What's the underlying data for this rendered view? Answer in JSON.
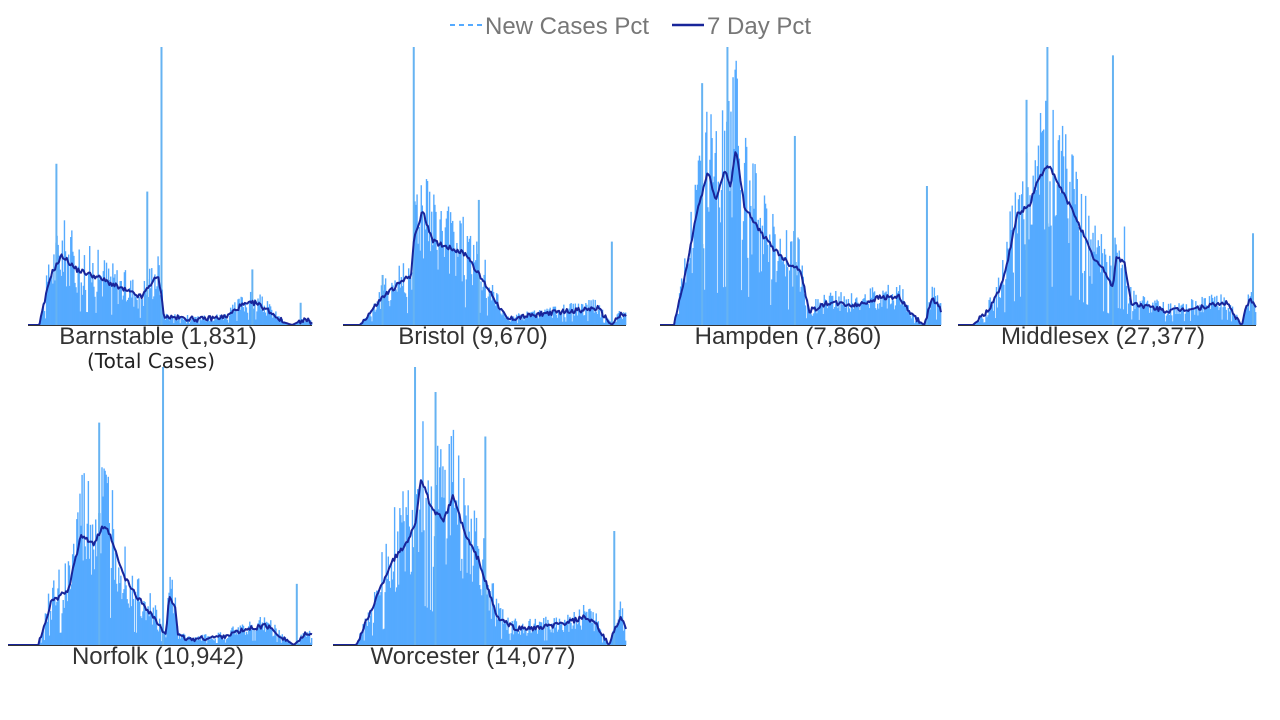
{
  "colors": {
    "bar": "#55aaff",
    "spike": "#66b3f2",
    "line": "#18259a",
    "axis": "#333333",
    "legend_text": "#777777",
    "label_text": "#333333"
  },
  "legend": {
    "dashed_label": "New Cases Pct",
    "solid_label": "7 Day Pct"
  },
  "note": "(Total Cases)",
  "chart_data": [
    {
      "type": "bar",
      "title": "Barnstable (1,831)",
      "series": [
        {
          "name": "New Cases Pct"
        },
        {
          "name": "7 Day Pct"
        }
      ],
      "profile": [
        [
          0.0,
          0.0
        ],
        [
          0.04,
          0.0
        ],
        [
          0.08,
          0.18
        ],
        [
          0.12,
          0.25
        ],
        [
          0.17,
          0.2
        ],
        [
          0.25,
          0.17
        ],
        [
          0.33,
          0.13
        ],
        [
          0.4,
          0.1
        ],
        [
          0.44,
          0.16
        ],
        [
          0.46,
          0.17
        ],
        [
          0.48,
          0.03
        ],
        [
          0.6,
          0.02
        ],
        [
          0.7,
          0.03
        ],
        [
          0.75,
          0.07
        ],
        [
          0.8,
          0.08
        ],
        [
          0.85,
          0.05
        ],
        [
          0.9,
          0.01
        ],
        [
          0.93,
          0.0
        ],
        [
          0.97,
          0.02
        ],
        [
          1.0,
          0.01
        ]
      ],
      "spikes": [
        [
          0.1,
          0.58
        ],
        [
          0.42,
          0.48
        ],
        [
          0.47,
          1.0
        ],
        [
          0.79,
          0.2
        ],
        [
          0.96,
          0.08
        ]
      ]
    },
    {
      "type": "bar",
      "title": "Bristol (9,670)",
      "series": [
        {
          "name": "New Cases Pct"
        },
        {
          "name": "7 Day Pct"
        }
      ],
      "profile": [
        [
          0.0,
          0.0
        ],
        [
          0.06,
          0.0
        ],
        [
          0.14,
          0.1
        ],
        [
          0.2,
          0.15
        ],
        [
          0.24,
          0.18
        ],
        [
          0.25,
          0.3
        ],
        [
          0.28,
          0.41
        ],
        [
          0.32,
          0.3
        ],
        [
          0.4,
          0.27
        ],
        [
          0.44,
          0.25
        ],
        [
          0.48,
          0.18
        ],
        [
          0.52,
          0.12
        ],
        [
          0.58,
          0.02
        ],
        [
          0.7,
          0.04
        ],
        [
          0.8,
          0.05
        ],
        [
          0.9,
          0.06
        ],
        [
          0.95,
          0.0
        ],
        [
          0.98,
          0.04
        ],
        [
          1.0,
          0.03
        ]
      ],
      "spikes": [
        [
          0.14,
          0.18
        ],
        [
          0.25,
          1.0
        ],
        [
          0.48,
          0.45
        ],
        [
          0.95,
          0.3
        ]
      ]
    },
    {
      "type": "bar",
      "title": "Hampden (7,860)",
      "series": [
        {
          "name": "New Cases Pct"
        },
        {
          "name": "7 Day Pct"
        }
      ],
      "profile": [
        [
          0.0,
          0.0
        ],
        [
          0.05,
          0.0
        ],
        [
          0.09,
          0.18
        ],
        [
          0.13,
          0.4
        ],
        [
          0.17,
          0.55
        ],
        [
          0.2,
          0.45
        ],
        [
          0.23,
          0.56
        ],
        [
          0.25,
          0.5
        ],
        [
          0.27,
          0.63
        ],
        [
          0.3,
          0.43
        ],
        [
          0.36,
          0.33
        ],
        [
          0.4,
          0.28
        ],
        [
          0.46,
          0.22
        ],
        [
          0.5,
          0.2
        ],
        [
          0.53,
          0.05
        ],
        [
          0.6,
          0.08
        ],
        [
          0.7,
          0.07
        ],
        [
          0.78,
          0.1
        ],
        [
          0.85,
          0.1
        ],
        [
          0.9,
          0.03
        ],
        [
          0.94,
          0.0
        ],
        [
          0.97,
          0.1
        ],
        [
          1.0,
          0.05
        ]
      ],
      "spikes": [
        [
          0.15,
          0.87
        ],
        [
          0.24,
          1.0
        ],
        [
          0.48,
          0.68
        ],
        [
          0.95,
          0.5
        ]
      ]
    },
    {
      "type": "bar",
      "title": "Middlesex (27,377)",
      "series": [
        {
          "name": "New Cases Pct"
        },
        {
          "name": "7 Day Pct"
        }
      ],
      "profile": [
        [
          0.0,
          0.0
        ],
        [
          0.05,
          0.0
        ],
        [
          0.1,
          0.05
        ],
        [
          0.15,
          0.15
        ],
        [
          0.2,
          0.4
        ],
        [
          0.24,
          0.43
        ],
        [
          0.26,
          0.5
        ],
        [
          0.3,
          0.58
        ],
        [
          0.34,
          0.5
        ],
        [
          0.4,
          0.38
        ],
        [
          0.45,
          0.25
        ],
        [
          0.5,
          0.18
        ],
        [
          0.52,
          0.13
        ],
        [
          0.53,
          0.25
        ],
        [
          0.56,
          0.22
        ],
        [
          0.58,
          0.08
        ],
        [
          0.7,
          0.05
        ],
        [
          0.8,
          0.06
        ],
        [
          0.9,
          0.08
        ],
        [
          0.95,
          0.0
        ],
        [
          0.98,
          0.1
        ],
        [
          1.0,
          0.06
        ]
      ],
      "spikes": [
        [
          0.23,
          0.81
        ],
        [
          0.3,
          1.0
        ],
        [
          0.52,
          0.97
        ],
        [
          0.99,
          0.33
        ]
      ]
    },
    {
      "type": "bar",
      "title": "Norfolk (10,942)",
      "series": [
        {
          "name": "New Cases Pct"
        },
        {
          "name": "7 Day Pct"
        }
      ],
      "profile": [
        [
          0.0,
          0.0
        ],
        [
          0.1,
          0.0
        ],
        [
          0.14,
          0.15
        ],
        [
          0.2,
          0.2
        ],
        [
          0.24,
          0.4
        ],
        [
          0.28,
          0.36
        ],
        [
          0.31,
          0.42
        ],
        [
          0.33,
          0.41
        ],
        [
          0.38,
          0.25
        ],
        [
          0.42,
          0.18
        ],
        [
          0.48,
          0.1
        ],
        [
          0.52,
          0.03
        ],
        [
          0.53,
          0.18
        ],
        [
          0.55,
          0.14
        ],
        [
          0.56,
          0.03
        ],
        [
          0.6,
          0.02
        ],
        [
          0.7,
          0.03
        ],
        [
          0.8,
          0.06
        ],
        [
          0.85,
          0.07
        ],
        [
          0.9,
          0.03
        ],
        [
          0.94,
          0.0
        ],
        [
          0.98,
          0.04
        ],
        [
          1.0,
          0.03
        ]
      ],
      "spikes": [
        [
          0.3,
          0.8
        ],
        [
          0.51,
          1.0
        ],
        [
          0.95,
          0.22
        ]
      ]
    },
    {
      "type": "bar",
      "title": "Worcester (14,077)",
      "series": [
        {
          "name": "New Cases Pct"
        },
        {
          "name": "7 Day Pct"
        }
      ],
      "profile": [
        [
          0.0,
          0.0
        ],
        [
          0.08,
          0.0
        ],
        [
          0.16,
          0.2
        ],
        [
          0.2,
          0.3
        ],
        [
          0.24,
          0.35
        ],
        [
          0.28,
          0.43
        ],
        [
          0.3,
          0.6
        ],
        [
          0.34,
          0.48
        ],
        [
          0.38,
          0.45
        ],
        [
          0.41,
          0.54
        ],
        [
          0.45,
          0.4
        ],
        [
          0.5,
          0.3
        ],
        [
          0.52,
          0.23
        ],
        [
          0.56,
          0.1
        ],
        [
          0.62,
          0.06
        ],
        [
          0.7,
          0.06
        ],
        [
          0.8,
          0.08
        ],
        [
          0.86,
          0.1
        ],
        [
          0.9,
          0.07
        ],
        [
          0.94,
          0.0
        ],
        [
          0.98,
          0.1
        ],
        [
          1.0,
          0.06
        ]
      ],
      "spikes": [
        [
          0.28,
          1.0
        ],
        [
          0.35,
          0.91
        ],
        [
          0.52,
          0.75
        ],
        [
          0.96,
          0.41
        ]
      ]
    }
  ]
}
